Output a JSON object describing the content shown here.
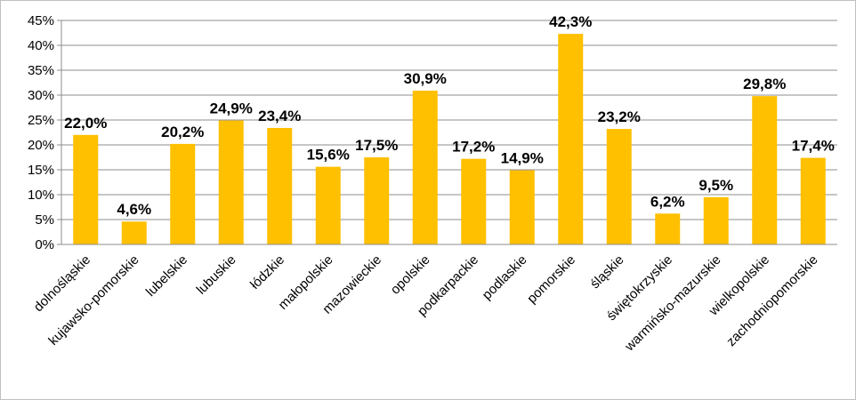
{
  "chart_data": {
    "type": "bar",
    "title": "",
    "xlabel": "",
    "ylabel": "",
    "ylim": [
      0,
      0.45
    ],
    "yticks": [
      "0%",
      "5%",
      "10%",
      "15%",
      "20%",
      "25%",
      "30%",
      "35%",
      "40%",
      "45%"
    ],
    "grid": true,
    "legend": "none",
    "bar_color": "#ffc000",
    "categories": [
      "dolnośląskie",
      "kujawsko-pomorskie",
      "lubelskie",
      "lubuskie",
      "łódzkie",
      "małopolskie",
      "mazowieckie",
      "opolskie",
      "podkarpackie",
      "podlaskie",
      "pomorskie",
      "śląskie",
      "świętokrzyskie",
      "warmińsko-mazurskie",
      "wielkopolskie",
      "zachodniopomorskie"
    ],
    "values": [
      0.22,
      0.046,
      0.202,
      0.249,
      0.234,
      0.156,
      0.175,
      0.309,
      0.172,
      0.149,
      0.423,
      0.232,
      0.062,
      0.095,
      0.298,
      0.174
    ],
    "data_labels": [
      "22,0%",
      "4,6%",
      "20,2%",
      "24,9%",
      "23,4%",
      "15,6%",
      "17,5%",
      "30,9%",
      "17,2%",
      "14,9%",
      "42,3%",
      "23,2%",
      "6,2%",
      "9,5%",
      "29,8%",
      "17,4%"
    ]
  }
}
